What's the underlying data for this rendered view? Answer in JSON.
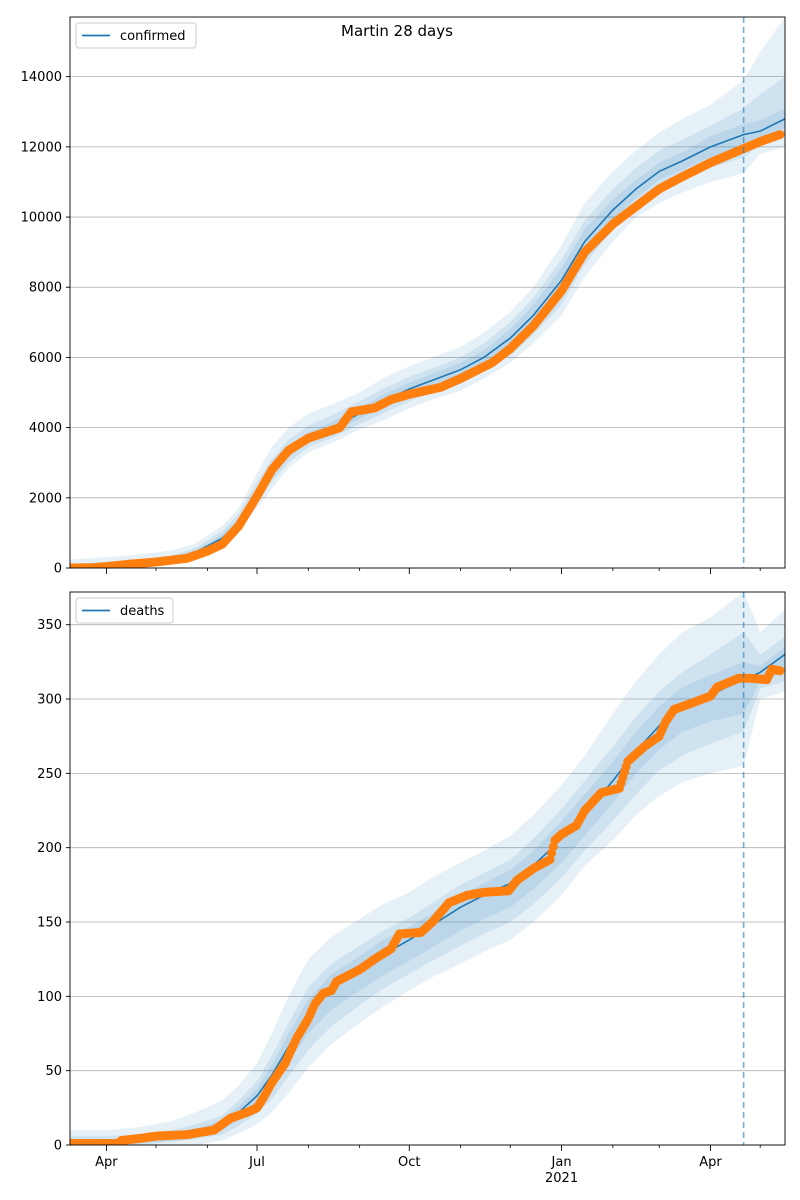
{
  "suptitle": "Martin 28 days",
  "colors": {
    "model_line": "#1f77b4",
    "observed": "#ff7f0e",
    "band": "#1f77b4",
    "grid": "#b0b0b0",
    "forecast_line": "#1f77b4"
  },
  "x_axis": {
    "start": "2020-03-10",
    "end": "2021-05-16",
    "major_ticks": [
      {
        "date": "2020-04-01",
        "label": "Apr",
        "sublabel": ""
      },
      {
        "date": "2020-07-01",
        "label": "Jul",
        "sublabel": ""
      },
      {
        "date": "2020-10-01",
        "label": "Oct",
        "sublabel": ""
      },
      {
        "date": "2021-01-01",
        "label": "Jan",
        "sublabel": "2021"
      },
      {
        "date": "2021-04-01",
        "label": "Apr",
        "sublabel": ""
      }
    ],
    "minor_ticks": [
      "2020-05-01",
      "2020-06-01",
      "2020-08-01",
      "2020-09-01",
      "2020-11-01",
      "2020-12-01",
      "2021-02-01",
      "2021-03-01",
      "2021-05-01"
    ],
    "forecast_start": "2021-04-21"
  },
  "chart_data": [
    {
      "type": "line",
      "legend": "confirmed",
      "legend_position": "upper left",
      "grid_y": true,
      "ylim": [
        0,
        15700
      ],
      "yticks": [
        0,
        2000,
        4000,
        6000,
        8000,
        10000,
        12000,
        14000
      ],
      "model_curve": [
        {
          "x": "2020-03-10",
          "y": 20
        },
        {
          "x": "2020-04-01",
          "y": 60
        },
        {
          "x": "2020-04-20",
          "y": 130
        },
        {
          "x": "2020-05-10",
          "y": 220
        },
        {
          "x": "2020-05-25",
          "y": 450
        },
        {
          "x": "2020-06-10",
          "y": 850
        },
        {
          "x": "2020-06-20",
          "y": 1300
        },
        {
          "x": "2020-07-01",
          "y": 2100
        },
        {
          "x": "2020-07-10",
          "y": 2750
        },
        {
          "x": "2020-07-20",
          "y": 3300
        },
        {
          "x": "2020-08-01",
          "y": 3700
        },
        {
          "x": "2020-08-15",
          "y": 4000
        },
        {
          "x": "2020-09-01",
          "y": 4400
        },
        {
          "x": "2020-09-15",
          "y": 4750
        },
        {
          "x": "2020-10-01",
          "y": 5100
        },
        {
          "x": "2020-10-15",
          "y": 5350
        },
        {
          "x": "2020-11-01",
          "y": 5650
        },
        {
          "x": "2020-11-15",
          "y": 6000
        },
        {
          "x": "2020-12-01",
          "y": 6550
        },
        {
          "x": "2020-12-15",
          "y": 7200
        },
        {
          "x": "2021-01-01",
          "y": 8200
        },
        {
          "x": "2021-01-15",
          "y": 9300
        },
        {
          "x": "2021-02-01",
          "y": 10200
        },
        {
          "x": "2021-02-15",
          "y": 10800
        },
        {
          "x": "2021-03-01",
          "y": 11300
        },
        {
          "x": "2021-03-15",
          "y": 11600
        },
        {
          "x": "2021-04-01",
          "y": 12000
        },
        {
          "x": "2021-04-21",
          "y": 12350
        },
        {
          "x": "2021-05-01",
          "y": 12450
        },
        {
          "x": "2021-05-16",
          "y": 12800
        }
      ],
      "bands": [
        {
          "lower": [
            0,
            20,
            80,
            150,
            330,
            680,
            1050,
            1700,
            2250,
            2850,
            3300,
            3550,
            3950,
            4200,
            4550,
            4800,
            5050,
            5400,
            5850,
            6400,
            7200,
            8300,
            9300,
            10000,
            10400,
            10700,
            11000,
            11250,
            11800,
            12000
          ],
          "upper": [
            240,
            310,
            380,
            500,
            700,
            1200,
            1700,
            2700,
            3450,
            4000,
            4400,
            4650,
            5000,
            5400,
            5750,
            6000,
            6300,
            6700,
            7300,
            8000,
            9200,
            10400,
            11300,
            11900,
            12400,
            12800,
            13200,
            13900,
            14700,
            15700
          ]
        },
        {
          "lower": [
            0,
            40,
            100,
            180,
            380,
            750,
            1150,
            1850,
            2450,
            3000,
            3450,
            3700,
            4100,
            4400,
            4750,
            5000,
            5250,
            5600,
            6050,
            6650,
            7500,
            8650,
            9650,
            10300,
            10750,
            11050,
            11400,
            11700,
            12050,
            12350
          ],
          "upper": [
            120,
            180,
            250,
            350,
            580,
            1050,
            1550,
            2450,
            3100,
            3650,
            4050,
            4350,
            4750,
            5100,
            5450,
            5700,
            6000,
            6400,
            7000,
            7700,
            8800,
            9900,
            10800,
            11400,
            11900,
            12200,
            12600,
            13100,
            13500,
            14000
          ]
        },
        {
          "lower": [
            5,
            50,
            115,
            200,
            420,
            800,
            1230,
            1980,
            2600,
            3150,
            3580,
            3850,
            4250,
            4580,
            4920,
            5170,
            5450,
            5800,
            6300,
            6900,
            7850,
            8950,
            9900,
            10550,
            11050,
            11350,
            11700,
            12050,
            12250,
            12550
          ],
          "upper": [
            60,
            110,
            180,
            280,
            520,
            950,
            1420,
            2280,
            2920,
            3470,
            3850,
            4150,
            4550,
            4930,
            5280,
            5530,
            5850,
            6200,
            6800,
            7500,
            8550,
            9650,
            10500,
            11050,
            11550,
            11850,
            12300,
            12650,
            12750,
            13100
          ]
        }
      ],
      "observed": {
        "start": "2020-03-10",
        "end": "2021-05-13",
        "points": [
          {
            "x": "2020-03-10",
            "y": 0
          },
          {
            "x": "2020-03-25",
            "y": 10
          },
          {
            "x": "2020-04-01",
            "y": 40
          },
          {
            "x": "2020-04-15",
            "y": 110
          },
          {
            "x": "2020-05-01",
            "y": 170
          },
          {
            "x": "2020-05-20",
            "y": 280
          },
          {
            "x": "2020-06-01",
            "y": 480
          },
          {
            "x": "2020-06-10",
            "y": 680
          },
          {
            "x": "2020-06-20",
            "y": 1200
          },
          {
            "x": "2020-07-01",
            "y": 2050
          },
          {
            "x": "2020-07-10",
            "y": 2800
          },
          {
            "x": "2020-07-20",
            "y": 3350
          },
          {
            "x": "2020-08-01",
            "y": 3700
          },
          {
            "x": "2020-08-20",
            "y": 4000
          },
          {
            "x": "2020-08-27",
            "y": 4450
          },
          {
            "x": "2020-09-10",
            "y": 4560
          },
          {
            "x": "2020-09-20",
            "y": 4800
          },
          {
            "x": "2020-10-01",
            "y": 4950
          },
          {
            "x": "2020-10-20",
            "y": 5150
          },
          {
            "x": "2020-11-01",
            "y": 5400
          },
          {
            "x": "2020-11-20",
            "y": 5850
          },
          {
            "x": "2020-12-01",
            "y": 6250
          },
          {
            "x": "2020-12-15",
            "y": 6900
          },
          {
            "x": "2021-01-01",
            "y": 7900
          },
          {
            "x": "2021-01-15",
            "y": 9000
          },
          {
            "x": "2021-02-01",
            "y": 9800
          },
          {
            "x": "2021-02-15",
            "y": 10300
          },
          {
            "x": "2021-03-01",
            "y": 10800
          },
          {
            "x": "2021-03-15",
            "y": 11150
          },
          {
            "x": "2021-04-01",
            "y": 11550
          },
          {
            "x": "2021-04-21",
            "y": 11950
          },
          {
            "x": "2021-05-01",
            "y": 12150
          },
          {
            "x": "2021-05-13",
            "y": 12350
          }
        ]
      }
    },
    {
      "type": "line",
      "legend": "deaths",
      "legend_position": "upper left",
      "grid_y": true,
      "ylim": [
        0,
        372
      ],
      "yticks": [
        0,
        50,
        100,
        150,
        200,
        250,
        300,
        350
      ],
      "model_curve": [
        {
          "x": "2020-03-10",
          "y": 1
        },
        {
          "x": "2020-04-01",
          "y": 1
        },
        {
          "x": "2020-04-20",
          "y": 3
        },
        {
          "x": "2020-05-10",
          "y": 6
        },
        {
          "x": "2020-05-25",
          "y": 8
        },
        {
          "x": "2020-06-10",
          "y": 14
        },
        {
          "x": "2020-06-20",
          "y": 22
        },
        {
          "x": "2020-07-01",
          "y": 33
        },
        {
          "x": "2020-07-10",
          "y": 47
        },
        {
          "x": "2020-07-20",
          "y": 66
        },
        {
          "x": "2020-08-01",
          "y": 88
        },
        {
          "x": "2020-08-15",
          "y": 105
        },
        {
          "x": "2020-09-01",
          "y": 118
        },
        {
          "x": "2020-09-15",
          "y": 128
        },
        {
          "x": "2020-10-01",
          "y": 138
        },
        {
          "x": "2020-10-15",
          "y": 148
        },
        {
          "x": "2020-11-01",
          "y": 160
        },
        {
          "x": "2020-11-15",
          "y": 168
        },
        {
          "x": "2020-12-01",
          "y": 176
        },
        {
          "x": "2020-12-15",
          "y": 188
        },
        {
          "x": "2021-01-01",
          "y": 206
        },
        {
          "x": "2021-01-15",
          "y": 222
        },
        {
          "x": "2021-02-01",
          "y": 245
        },
        {
          "x": "2021-02-15",
          "y": 265
        },
        {
          "x": "2021-03-01",
          "y": 282
        },
        {
          "x": "2021-03-15",
          "y": 295
        },
        {
          "x": "2021-04-01",
          "y": 303
        },
        {
          "x": "2021-04-21",
          "y": 313
        },
        {
          "x": "2021-05-01",
          "y": 318
        },
        {
          "x": "2021-05-16",
          "y": 330
        }
      ],
      "bands": [
        {
          "lower": [
            0,
            0,
            0,
            0,
            0,
            3,
            8,
            14,
            22,
            35,
            52,
            68,
            82,
            93,
            104,
            113,
            122,
            130,
            138,
            150,
            168,
            188,
            205,
            222,
            235,
            244,
            250,
            255,
            300,
            305
          ],
          "upper": [
            10,
            10,
            12,
            16,
            22,
            30,
            40,
            55,
            75,
            100,
            125,
            140,
            152,
            162,
            170,
            180,
            190,
            198,
            208,
            222,
            242,
            262,
            290,
            312,
            330,
            345,
            355,
            372,
            345,
            360
          ]
        },
        {
          "lower": [
            0,
            0,
            0,
            2,
            4,
            7,
            13,
            21,
            31,
            46,
            64,
            80,
            94,
            105,
            115,
            124,
            134,
            142,
            150,
            162,
            180,
            198,
            218,
            236,
            252,
            262,
            270,
            278,
            307,
            312
          ],
          "upper": [
            6,
            6,
            7,
            10,
            14,
            20,
            30,
            43,
            60,
            82,
            106,
            122,
            134,
            144,
            153,
            163,
            175,
            183,
            192,
            206,
            226,
            245,
            268,
            288,
            305,
            318,
            330,
            345,
            330,
            342
          ]
        },
        {
          "lower": [
            0,
            0,
            1,
            3,
            5,
            10,
            17,
            27,
            39,
            56,
            75,
            91,
            104,
            114,
            124,
            133,
            144,
            152,
            160,
            172,
            190,
            208,
            230,
            250,
            266,
            278,
            285,
            290,
            312,
            318
          ],
          "upper": [
            3,
            3,
            5,
            8,
            11,
            17,
            26,
            38,
            54,
            75,
            98,
            115,
            127,
            138,
            147,
            156,
            168,
            176,
            185,
            198,
            218,
            236,
            258,
            278,
            295,
            308,
            316,
            325,
            322,
            335
          ]
        }
      ],
      "observed": {
        "start": "2020-03-10",
        "end": "2021-05-13",
        "points": [
          {
            "x": "2020-03-10",
            "y": 1
          },
          {
            "x": "2020-04-08",
            "y": 1
          },
          {
            "x": "2020-04-10",
            "y": 3
          },
          {
            "x": "2020-04-25",
            "y": 5
          },
          {
            "x": "2020-05-01",
            "y": 6
          },
          {
            "x": "2020-05-20",
            "y": 7
          },
          {
            "x": "2020-05-25",
            "y": 8
          },
          {
            "x": "2020-06-05",
            "y": 10
          },
          {
            "x": "2020-06-10",
            "y": 14
          },
          {
            "x": "2020-06-15",
            "y": 18
          },
          {
            "x": "2020-06-25",
            "y": 22
          },
          {
            "x": "2020-07-01",
            "y": 25
          },
          {
            "x": "2020-07-05",
            "y": 32
          },
          {
            "x": "2020-07-10",
            "y": 42
          },
          {
            "x": "2020-07-18",
            "y": 55
          },
          {
            "x": "2020-07-25",
            "y": 72
          },
          {
            "x": "2020-08-01",
            "y": 85
          },
          {
            "x": "2020-08-05",
            "y": 95
          },
          {
            "x": "2020-08-10",
            "y": 102
          },
          {
            "x": "2020-08-15",
            "y": 104
          },
          {
            "x": "2020-08-18",
            "y": 110
          },
          {
            "x": "2020-09-01",
            "y": 118
          },
          {
            "x": "2020-09-10",
            "y": 125
          },
          {
            "x": "2020-09-20",
            "y": 132
          },
          {
            "x": "2020-09-25",
            "y": 142
          },
          {
            "x": "2020-10-08",
            "y": 143
          },
          {
            "x": "2020-10-15",
            "y": 150
          },
          {
            "x": "2020-10-25",
            "y": 163
          },
          {
            "x": "2020-11-05",
            "y": 168
          },
          {
            "x": "2020-11-15",
            "y": 170
          },
          {
            "x": "2020-11-30",
            "y": 171
          },
          {
            "x": "2020-12-05",
            "y": 178
          },
          {
            "x": "2020-12-15",
            "y": 186
          },
          {
            "x": "2020-12-25",
            "y": 192
          },
          {
            "x": "2020-12-28",
            "y": 205
          },
          {
            "x": "2021-01-01",
            "y": 209
          },
          {
            "x": "2021-01-10",
            "y": 215
          },
          {
            "x": "2021-01-15",
            "y": 225
          },
          {
            "x": "2021-01-25",
            "y": 237
          },
          {
            "x": "2021-02-05",
            "y": 240
          },
          {
            "x": "2021-02-10",
            "y": 258
          },
          {
            "x": "2021-02-20",
            "y": 268
          },
          {
            "x": "2021-03-01",
            "y": 275
          },
          {
            "x": "2021-03-05",
            "y": 285
          },
          {
            "x": "2021-03-10",
            "y": 293
          },
          {
            "x": "2021-03-20",
            "y": 297
          },
          {
            "x": "2021-04-01",
            "y": 302
          },
          {
            "x": "2021-04-05",
            "y": 308
          },
          {
            "x": "2021-04-18",
            "y": 314
          },
          {
            "x": "2021-04-25",
            "y": 314
          },
          {
            "x": "2021-05-05",
            "y": 313
          },
          {
            "x": "2021-05-08",
            "y": 320
          },
          {
            "x": "2021-05-13",
            "y": 319
          }
        ]
      }
    }
  ]
}
